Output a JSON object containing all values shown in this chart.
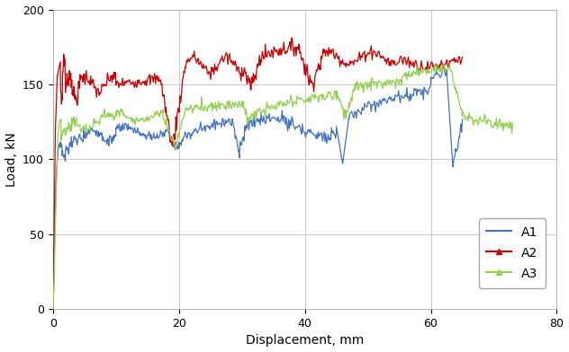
{
  "xlabel": "Displacement, mm",
  "ylabel": "Load, kN",
  "xlim": [
    0,
    80
  ],
  "ylim": [
    0,
    200
  ],
  "xticks": [
    0,
    20,
    40,
    60,
    80
  ],
  "yticks": [
    0,
    50,
    100,
    150,
    200
  ],
  "colors": {
    "A1": "#4472C4",
    "A2": "#CC0000",
    "A3": "#92D050"
  },
  "background_color": "#FFFFFF",
  "grid_color": "#BFBFBF"
}
